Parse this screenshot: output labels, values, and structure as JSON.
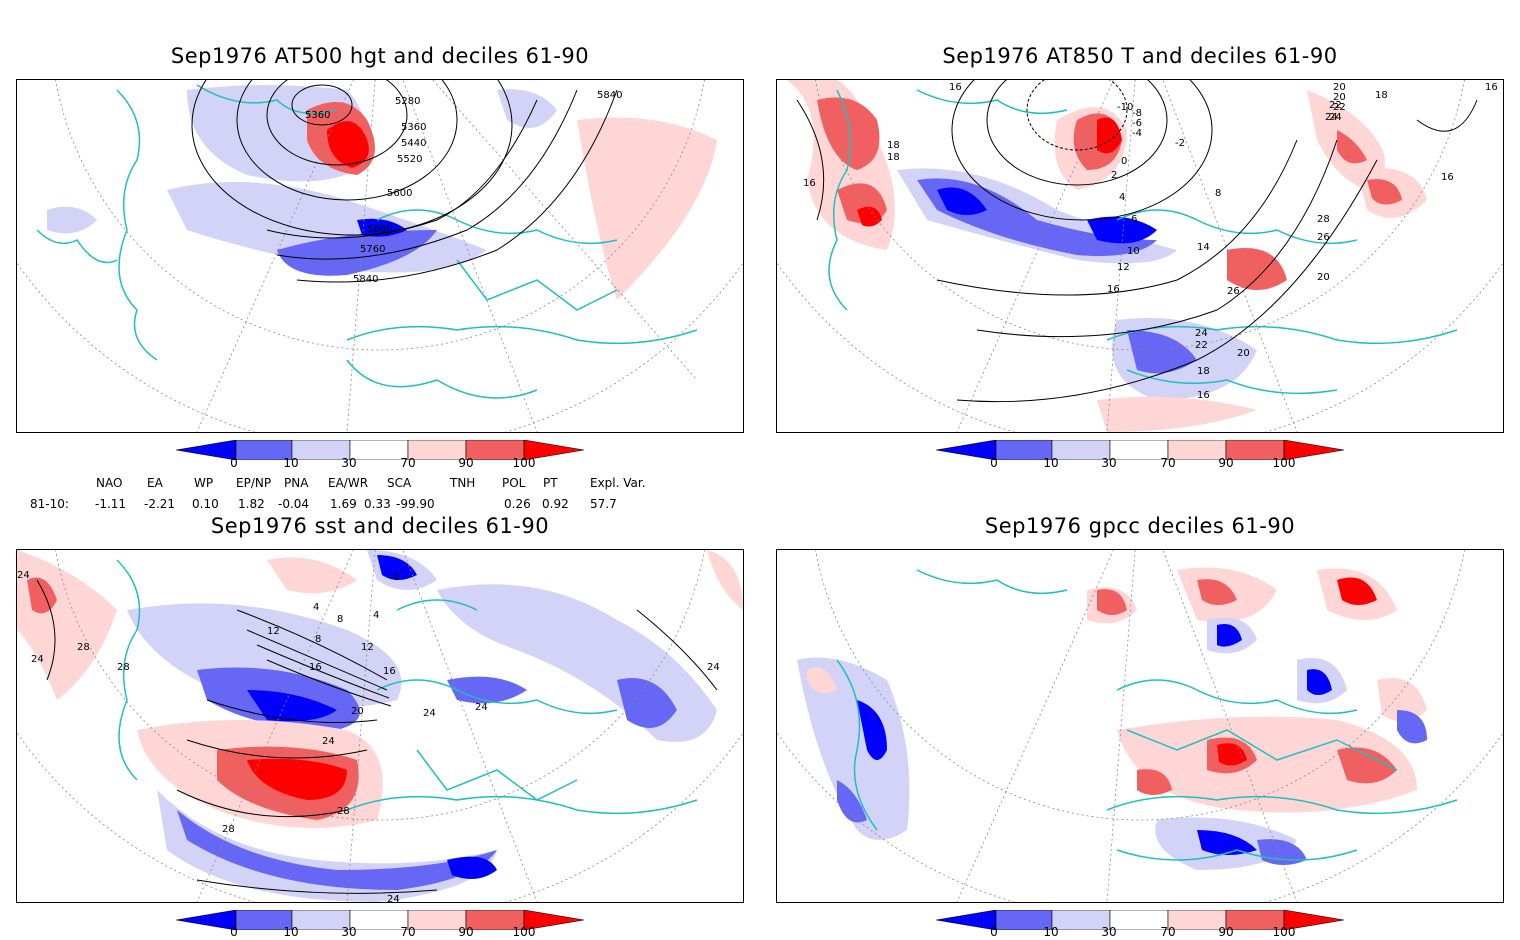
{
  "panels": [
    {
      "title": "Sep1976 AT500 hgt and deciles 61-90",
      "contour_labels": [
        "5360",
        "5280",
        "5360",
        "5440",
        "5520",
        "5600",
        "5680",
        "5760",
        "5840",
        "5840"
      ]
    },
    {
      "title": "Sep1976 AT850 T and deciles 61-90",
      "contour_labels": [
        "16",
        "-10",
        "-8",
        "-6",
        "-4",
        "-2",
        "0",
        "2",
        "4",
        "6",
        "8",
        "10",
        "12",
        "14",
        "16",
        "18",
        "18",
        "16",
        "16",
        "18",
        "20",
        "22",
        "24",
        "26",
        "26",
        "24",
        "22",
        "20",
        "18",
        "16",
        "16",
        "20",
        "20",
        "22",
        "24",
        "28"
      ]
    },
    {
      "title": "Sep1976 sst and deciles 61-90",
      "contour_labels": [
        "24",
        "24",
        "28",
        "28",
        "4",
        "8",
        "12",
        "16",
        "20",
        "24",
        "24",
        "24",
        "28",
        "28",
        "12",
        "16",
        "24",
        "0",
        "4",
        "8",
        "24"
      ]
    },
    {
      "title": "Sep1976 gpcc deciles 61-90",
      "contour_labels": []
    }
  ],
  "colorbar": {
    "ticks": [
      "0",
      "10",
      "30",
      "70",
      "90",
      "100"
    ],
    "colors": [
      "#0000ff",
      "#6767f5",
      "#d3d3f7",
      "#ffffff",
      "#ffd6d6",
      "#f06060",
      "#ff0000"
    ]
  },
  "teleconnections": {
    "headers": [
      "NAO",
      "EA",
      "WP",
      "EP/NP",
      "PNA",
      "EA/WR",
      "SCA",
      "TNH",
      "POL",
      "PT",
      "Expl. Var."
    ],
    "row_label": "81-10:",
    "values": [
      "-1.11",
      "-2.21",
      "0.10",
      "1.82",
      "-0.04",
      "1.69",
      "0.33",
      "-99.90",
      "0.26",
      "0.92",
      "57.7"
    ]
  },
  "map_colors": {
    "coast": "#1fbfbf",
    "contour": "#000000",
    "grid": "#888888"
  }
}
